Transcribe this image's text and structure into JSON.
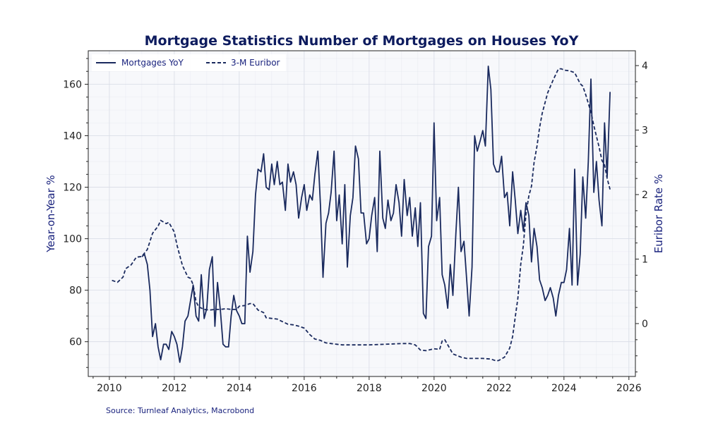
{
  "chart_data": {
    "type": "line",
    "title": "Mortgage Statistics Number of Mortgages on Houses YoY",
    "ylabel": "Year-on-Year %",
    "y2label": "Euribor Rate %",
    "xlim": [
      2009.35,
      2026.2
    ],
    "ylim": [
      46.5,
      173
    ],
    "y2lim": [
      -0.82,
      4.23
    ],
    "x_ticks": [
      2010,
      2012,
      2014,
      2016,
      2018,
      2020,
      2022,
      2024,
      2026
    ],
    "y_ticks": [
      60,
      80,
      100,
      120,
      140,
      160
    ],
    "y2_ticks": [
      0,
      1,
      2,
      3,
      4
    ],
    "grid": true,
    "legend_position": "top-left",
    "colors": {
      "series": "#1a2a5e",
      "grid": "#d8dce6",
      "plot_bg": "#f7f8fb"
    },
    "series": [
      {
        "name": "Mortgages YoY",
        "axis": "left",
        "style": "solid",
        "points": [
          [
            2011.0,
            93
          ],
          [
            2011.08,
            94
          ],
          [
            2011.17,
            90
          ],
          [
            2011.25,
            80
          ],
          [
            2011.33,
            62
          ],
          [
            2011.42,
            67
          ],
          [
            2011.5,
            58
          ],
          [
            2011.58,
            53
          ],
          [
            2011.67,
            59
          ],
          [
            2011.75,
            59
          ],
          [
            2011.83,
            57
          ],
          [
            2011.92,
            64
          ],
          [
            2012.0,
            62
          ],
          [
            2012.08,
            59
          ],
          [
            2012.17,
            52
          ],
          [
            2012.25,
            58
          ],
          [
            2012.33,
            68
          ],
          [
            2012.42,
            70
          ],
          [
            2012.5,
            76
          ],
          [
            2012.58,
            82
          ],
          [
            2012.67,
            70
          ],
          [
            2012.75,
            68
          ],
          [
            2012.83,
            86
          ],
          [
            2012.92,
            69
          ],
          [
            2013.0,
            73
          ],
          [
            2013.08,
            88
          ],
          [
            2013.17,
            93
          ],
          [
            2013.25,
            66
          ],
          [
            2013.33,
            83
          ],
          [
            2013.42,
            72
          ],
          [
            2013.5,
            59
          ],
          [
            2013.58,
            58
          ],
          [
            2013.67,
            58
          ],
          [
            2013.75,
            70
          ],
          [
            2013.83,
            78
          ],
          [
            2013.92,
            72
          ],
          [
            2014.0,
            70
          ],
          [
            2014.08,
            67
          ],
          [
            2014.17,
            67
          ],
          [
            2014.25,
            101
          ],
          [
            2014.33,
            87
          ],
          [
            2014.42,
            95
          ],
          [
            2014.5,
            117
          ],
          [
            2014.58,
            127
          ],
          [
            2014.67,
            126
          ],
          [
            2014.75,
            133
          ],
          [
            2014.83,
            120
          ],
          [
            2014.92,
            119
          ],
          [
            2015.0,
            129
          ],
          [
            2015.08,
            121
          ],
          [
            2015.17,
            130
          ],
          [
            2015.25,
            121
          ],
          [
            2015.33,
            122
          ],
          [
            2015.42,
            111
          ],
          [
            2015.5,
            129
          ],
          [
            2015.58,
            122
          ],
          [
            2015.67,
            126
          ],
          [
            2015.75,
            121
          ],
          [
            2015.83,
            108
          ],
          [
            2015.92,
            116
          ],
          [
            2016.0,
            121
          ],
          [
            2016.08,
            111
          ],
          [
            2016.17,
            117
          ],
          [
            2016.25,
            115
          ],
          [
            2016.33,
            125
          ],
          [
            2016.42,
            134
          ],
          [
            2016.5,
            113
          ],
          [
            2016.58,
            85
          ],
          [
            2016.67,
            106
          ],
          [
            2016.75,
            110
          ],
          [
            2016.83,
            118
          ],
          [
            2016.92,
            134
          ],
          [
            2017.0,
            107
          ],
          [
            2017.08,
            117
          ],
          [
            2017.17,
            98
          ],
          [
            2017.25,
            121
          ],
          [
            2017.33,
            89
          ],
          [
            2017.42,
            109
          ],
          [
            2017.5,
            116
          ],
          [
            2017.58,
            136
          ],
          [
            2017.67,
            131
          ],
          [
            2017.75,
            110
          ],
          [
            2017.83,
            110
          ],
          [
            2017.92,
            98
          ],
          [
            2018.0,
            100
          ],
          [
            2018.08,
            109
          ],
          [
            2018.17,
            116
          ],
          [
            2018.25,
            95
          ],
          [
            2018.33,
            134
          ],
          [
            2018.42,
            108
          ],
          [
            2018.5,
            104
          ],
          [
            2018.58,
            115
          ],
          [
            2018.67,
            107
          ],
          [
            2018.75,
            110
          ],
          [
            2018.83,
            121
          ],
          [
            2018.92,
            114
          ],
          [
            2019.0,
            101
          ],
          [
            2019.08,
            123
          ],
          [
            2019.17,
            109
          ],
          [
            2019.25,
            116
          ],
          [
            2019.33,
            101
          ],
          [
            2019.42,
            112
          ],
          [
            2019.5,
            97
          ],
          [
            2019.58,
            114
          ],
          [
            2019.67,
            71
          ],
          [
            2019.75,
            69
          ],
          [
            2019.83,
            97
          ],
          [
            2019.92,
            101
          ],
          [
            2020.0,
            145
          ],
          [
            2020.08,
            107
          ],
          [
            2020.17,
            116
          ],
          [
            2020.25,
            86
          ],
          [
            2020.33,
            82
          ],
          [
            2020.42,
            73
          ],
          [
            2020.5,
            90
          ],
          [
            2020.58,
            78
          ],
          [
            2020.67,
            102
          ],
          [
            2020.75,
            120
          ],
          [
            2020.83,
            95
          ],
          [
            2020.92,
            99
          ],
          [
            2021.0,
            85
          ],
          [
            2021.08,
            70
          ],
          [
            2021.17,
            89
          ],
          [
            2021.25,
            140
          ],
          [
            2021.33,
            134
          ],
          [
            2021.42,
            138
          ],
          [
            2021.5,
            142
          ],
          [
            2021.58,
            136
          ],
          [
            2021.67,
            167
          ],
          [
            2021.75,
            158
          ],
          [
            2021.83,
            129
          ],
          [
            2021.92,
            126
          ],
          [
            2022.0,
            126
          ],
          [
            2022.08,
            132
          ],
          [
            2022.17,
            116
          ],
          [
            2022.25,
            118
          ],
          [
            2022.33,
            105
          ],
          [
            2022.42,
            126
          ],
          [
            2022.5,
            115
          ],
          [
            2022.58,
            102
          ],
          [
            2022.67,
            111
          ],
          [
            2022.75,
            103
          ],
          [
            2022.83,
            114
          ],
          [
            2022.92,
            109
          ],
          [
            2023.0,
            91
          ],
          [
            2023.08,
            104
          ],
          [
            2023.17,
            97
          ],
          [
            2023.25,
            84
          ],
          [
            2023.33,
            81
          ],
          [
            2023.42,
            76
          ],
          [
            2023.5,
            78
          ],
          [
            2023.58,
            81
          ],
          [
            2023.67,
            77
          ],
          [
            2023.75,
            70
          ],
          [
            2023.83,
            78
          ],
          [
            2023.92,
            83
          ],
          [
            2024.0,
            83
          ],
          [
            2024.08,
            88
          ],
          [
            2024.17,
            104
          ],
          [
            2024.25,
            82
          ],
          [
            2024.33,
            127
          ],
          [
            2024.42,
            82
          ],
          [
            2024.5,
            94
          ],
          [
            2024.58,
            124
          ],
          [
            2024.67,
            108
          ],
          [
            2024.75,
            130
          ],
          [
            2024.83,
            162
          ],
          [
            2024.92,
            118
          ],
          [
            2025.0,
            130
          ],
          [
            2025.08,
            115
          ],
          [
            2025.17,
            105
          ],
          [
            2025.25,
            145
          ],
          [
            2025.33,
            124
          ],
          [
            2025.42,
            157
          ]
        ]
      },
      {
        "name": "3-M Euribor",
        "axis": "right",
        "style": "dashed",
        "points": [
          [
            2010.08,
            0.67
          ],
          [
            2010.25,
            0.64
          ],
          [
            2010.42,
            0.72
          ],
          [
            2010.5,
            0.85
          ],
          [
            2010.67,
            0.91
          ],
          [
            2010.83,
            1.03
          ],
          [
            2011.0,
            1.04
          ],
          [
            2011.17,
            1.15
          ],
          [
            2011.33,
            1.4
          ],
          [
            2011.5,
            1.51
          ],
          [
            2011.58,
            1.6
          ],
          [
            2011.75,
            1.55
          ],
          [
            2011.83,
            1.57
          ],
          [
            2012.0,
            1.42
          ],
          [
            2012.08,
            1.22
          ],
          [
            2012.25,
            0.9
          ],
          [
            2012.42,
            0.72
          ],
          [
            2012.5,
            0.7
          ],
          [
            2012.58,
            0.6
          ],
          [
            2012.67,
            0.34
          ],
          [
            2012.75,
            0.26
          ],
          [
            2012.92,
            0.22
          ],
          [
            2013.08,
            0.21
          ],
          [
            2013.25,
            0.22
          ],
          [
            2013.42,
            0.22
          ],
          [
            2013.58,
            0.23
          ],
          [
            2013.75,
            0.22
          ],
          [
            2013.92,
            0.22
          ],
          [
            2014.0,
            0.27
          ],
          [
            2014.17,
            0.28
          ],
          [
            2014.33,
            0.31
          ],
          [
            2014.42,
            0.31
          ],
          [
            2014.58,
            0.21
          ],
          [
            2014.75,
            0.17
          ],
          [
            2014.83,
            0.09
          ],
          [
            2015.0,
            0.08
          ],
          [
            2015.17,
            0.07
          ],
          [
            2015.33,
            0.03
          ],
          [
            2015.5,
            -0.01
          ],
          [
            2015.67,
            -0.02
          ],
          [
            2015.83,
            -0.04
          ],
          [
            2016.0,
            -0.07
          ],
          [
            2016.17,
            -0.17
          ],
          [
            2016.33,
            -0.24
          ],
          [
            2016.5,
            -0.26
          ],
          [
            2016.67,
            -0.3
          ],
          [
            2016.83,
            -0.31
          ],
          [
            2017.0,
            -0.32
          ],
          [
            2017.17,
            -0.33
          ],
          [
            2017.5,
            -0.33
          ],
          [
            2018.0,
            -0.33
          ],
          [
            2018.5,
            -0.32
          ],
          [
            2019.0,
            -0.31
          ],
          [
            2019.25,
            -0.31
          ],
          [
            2019.42,
            -0.33
          ],
          [
            2019.58,
            -0.41
          ],
          [
            2019.75,
            -0.42
          ],
          [
            2020.0,
            -0.39
          ],
          [
            2020.17,
            -0.4
          ],
          [
            2020.25,
            -0.27
          ],
          [
            2020.33,
            -0.25
          ],
          [
            2020.42,
            -0.33
          ],
          [
            2020.58,
            -0.47
          ],
          [
            2020.83,
            -0.52
          ],
          [
            2021.0,
            -0.54
          ],
          [
            2021.25,
            -0.54
          ],
          [
            2021.5,
            -0.54
          ],
          [
            2021.75,
            -0.55
          ],
          [
            2021.92,
            -0.58
          ],
          [
            2022.0,
            -0.57
          ],
          [
            2022.17,
            -0.52
          ],
          [
            2022.33,
            -0.38
          ],
          [
            2022.42,
            -0.2
          ],
          [
            2022.5,
            0.1
          ],
          [
            2022.58,
            0.39
          ],
          [
            2022.67,
            0.92
          ],
          [
            2022.75,
            1.21
          ],
          [
            2022.83,
            1.7
          ],
          [
            2022.92,
            1.98
          ],
          [
            2023.0,
            2.13
          ],
          [
            2023.08,
            2.5
          ],
          [
            2023.17,
            2.75
          ],
          [
            2023.25,
            3.04
          ],
          [
            2023.33,
            3.26
          ],
          [
            2023.5,
            3.58
          ],
          [
            2023.67,
            3.78
          ],
          [
            2023.83,
            3.95
          ],
          [
            2023.92,
            3.95
          ],
          [
            2024.0,
            3.93
          ],
          [
            2024.17,
            3.92
          ],
          [
            2024.33,
            3.89
          ],
          [
            2024.5,
            3.72
          ],
          [
            2024.58,
            3.68
          ],
          [
            2024.67,
            3.55
          ],
          [
            2024.83,
            3.28
          ],
          [
            2024.92,
            3.07
          ],
          [
            2025.08,
            2.74
          ],
          [
            2025.17,
            2.53
          ],
          [
            2025.25,
            2.46
          ],
          [
            2025.33,
            2.25
          ],
          [
            2025.42,
            2.08
          ]
        ]
      }
    ]
  },
  "source": "Source: Turnleaf Analytics, Macrobond"
}
